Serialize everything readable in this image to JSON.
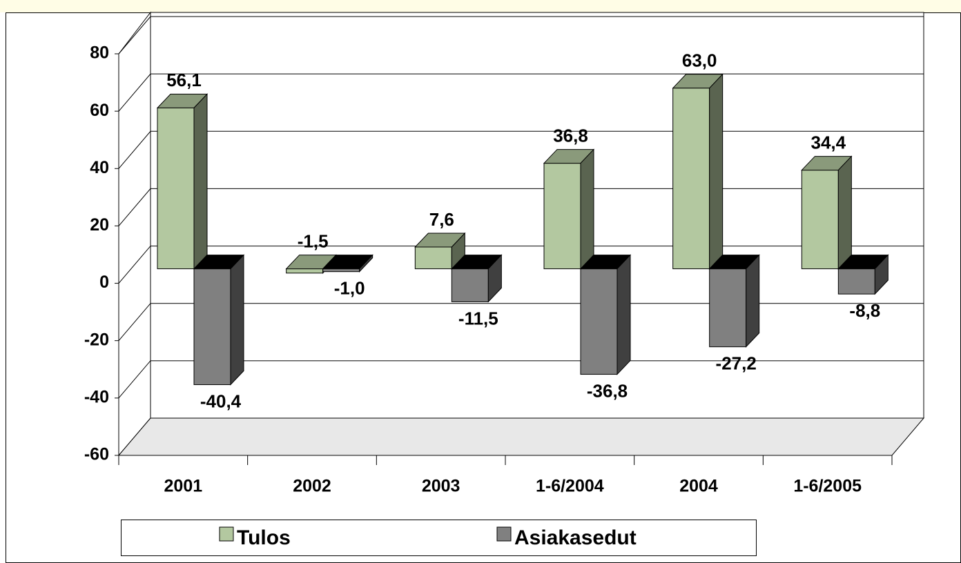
{
  "chart_data": {
    "type": "bar3d",
    "categories": [
      "2001",
      "2002",
      "2003",
      "1-6/2004",
      "2004",
      "1-6/2005"
    ],
    "series": [
      {
        "name": "Tulos",
        "color": "#b3c8a0",
        "values": [
          56.1,
          -1.5,
          7.6,
          36.8,
          63.0,
          34.4
        ],
        "value_labels": [
          "56,1",
          "-1,5",
          "7,6",
          "36,8",
          "63,0",
          "34,4"
        ]
      },
      {
        "name": "Asiakasedut",
        "color": "#808080",
        "values": [
          -40.4,
          -1.0,
          -11.5,
          -36.8,
          -27.2,
          -8.8
        ],
        "value_labels": [
          "-40,4",
          "-1,0",
          "-11,5",
          "-36,8",
          "-27,2",
          "-8,8"
        ]
      }
    ],
    "ylim": [
      -60,
      80
    ],
    "yticks": [
      -60,
      -40,
      -20,
      0,
      20,
      40,
      60,
      80
    ],
    "grid": true,
    "legend": "bottom"
  }
}
